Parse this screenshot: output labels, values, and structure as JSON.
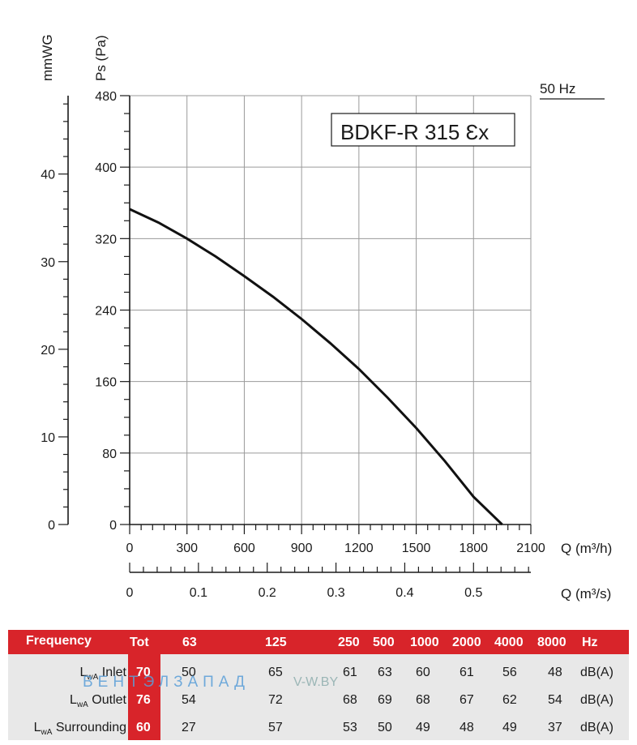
{
  "chart_data": {
    "type": "line",
    "title": "BDKF-R 315 Ɛx",
    "frequency_label": "50 Hz",
    "y_label_pa": "Ps (Pa)",
    "y_label_mmwg": "mmWG",
    "x_label_m3h": "Q (m³/h)",
    "x_label_m3s": "Q (m³/s)",
    "xlim": [
      0,
      2100
    ],
    "ylim": [
      0,
      480
    ],
    "x_ticks": [
      "0",
      "300",
      "600",
      "900",
      "1200",
      "1500",
      "1800",
      "2100"
    ],
    "y_ticks": [
      "0",
      "80",
      "160",
      "240",
      "320",
      "400",
      "480"
    ],
    "mmwg_ticks": [
      "0",
      "10",
      "20",
      "30",
      "40"
    ],
    "m3s_ticks": [
      "0",
      "0.1",
      "0.2",
      "0.3",
      "0.4",
      "0.5"
    ],
    "grid": true,
    "series": [
      {
        "x": [
          0,
          150,
          300,
          450,
          600,
          750,
          900,
          1050,
          1200,
          1350,
          1500,
          1650,
          1800,
          1950
        ],
        "y": [
          353,
          338,
          320,
          300,
          278,
          255,
          230,
          203,
          174,
          142,
          108,
          71,
          31,
          0
        ]
      }
    ]
  },
  "table": {
    "header": {
      "frequency": "Frequency",
      "tot": "Tot",
      "bands": [
        "63",
        "125",
        "250",
        "500",
        "1000",
        "2000",
        "4000",
        "8000"
      ],
      "unit": "Hz"
    },
    "rows": [
      {
        "label_main": "L",
        "label_sub": "wA",
        "label_rest": " Inlet",
        "tot": "70",
        "values": [
          "50",
          "65",
          "61",
          "63",
          "60",
          "61",
          "56",
          "48"
        ],
        "unit": "dB(A)"
      },
      {
        "label_main": "L",
        "label_sub": "wA",
        "label_rest": " Outlet",
        "tot": "76",
        "values": [
          "54",
          "72",
          "68",
          "69",
          "68",
          "67",
          "62",
          "54"
        ],
        "unit": "dB(A)"
      },
      {
        "label_main": "L",
        "label_sub": "wA",
        "label_rest": " Surrounding",
        "tot": "60",
        "values": [
          "27",
          "57",
          "53",
          "50",
          "49",
          "48",
          "49",
          "37"
        ],
        "unit": "dB(A)"
      }
    ],
    "watermark": "ВЕНТЭЛЗАПАД",
    "watermark_url": "V-W.BY"
  }
}
